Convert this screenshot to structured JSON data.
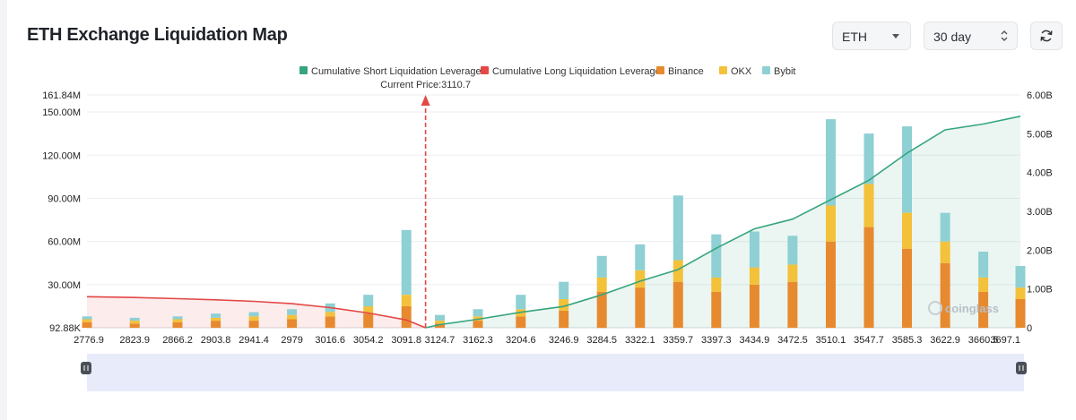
{
  "header": {
    "title": "ETH Exchange Liquidation Map",
    "coin_select": "ETH",
    "period_select": "30 day"
  },
  "icons": {
    "refresh": "refresh-icon",
    "coin_caret": "chevron-down-icon",
    "period_caret": "up-down-chevron-icon"
  },
  "colors": {
    "short_cumulative": "#36a57e",
    "long_cumulative": "#e34845",
    "binance": "#e78a2f",
    "okx": "#f3c13a",
    "bybit": "#8ed0d3"
  },
  "watermark": "coinglass",
  "chart_data": {
    "type": "bar",
    "stacked": true,
    "legend": [
      "Cumulative Short Liquidation Leverage",
      "Cumulative Long Liquidation Leverage",
      "Binance",
      "OKX",
      "Bybit"
    ],
    "legend_position": "top-center",
    "annotation": "Current Price:3110.7",
    "current_price": 3110.7,
    "x_tick_labels": [
      "2776.9",
      "2823.9",
      "2866.2",
      "2903.8",
      "2941.4",
      "2979",
      "3016.6",
      "3054.2",
      "3091.8",
      "3124.7",
      "3162.3",
      "3204.6",
      "3246.9",
      "3284.5",
      "3322.1",
      "3359.7",
      "3397.3",
      "3434.9",
      "3472.5",
      "3510.1",
      "3547.7",
      "3585.3",
      "3622.9",
      "3660.5",
      "3697.1"
    ],
    "xlim": [
      2776.9,
      3697.1
    ],
    "y_left_tick_labels": [
      "92.88K",
      "30.00M",
      "60.00M",
      "90.00M",
      "120.00M",
      "150.00M",
      "161.84M"
    ],
    "y_left_ticks": [
      0.09288,
      30,
      60,
      90,
      120,
      150,
      161.84
    ],
    "y_left_unit": "M",
    "ylim_left": [
      0.09288,
      161.84
    ],
    "y_right_tick_labels": [
      "0",
      "1.00B",
      "2.00B",
      "3.00B",
      "4.00B",
      "5.00B",
      "6.00B"
    ],
    "y_right_ticks": [
      0,
      1,
      2,
      3,
      4,
      5,
      6
    ],
    "y_right_unit": "B",
    "ylim_right": [
      0,
      6
    ],
    "grid": "horizontal",
    "series": [
      {
        "name": "Cumulative Short Liquidation Leverage",
        "kind": "line",
        "axis": "right",
        "x": [
          3110.7,
          3124.7,
          3162.3,
          3204.6,
          3246.9,
          3284.5,
          3322.1,
          3359.7,
          3397.3,
          3434.9,
          3472.5,
          3510.1,
          3547.7,
          3585.3,
          3622.9,
          3660.5,
          3697.1
        ],
        "values": [
          0,
          0.08,
          0.22,
          0.4,
          0.55,
          0.85,
          1.2,
          1.5,
          2.05,
          2.55,
          2.8,
          3.3,
          3.8,
          4.5,
          5.1,
          5.25,
          5.45
        ]
      },
      {
        "name": "Cumulative Long Liquidation Leverage",
        "kind": "line",
        "axis": "right",
        "x": [
          2776.9,
          2823.9,
          2866.2,
          2903.8,
          2941.4,
          2979,
          3016.6,
          3054.2,
          3091.8,
          3110.7
        ],
        "values": [
          0.8,
          0.78,
          0.75,
          0.72,
          0.68,
          0.62,
          0.52,
          0.38,
          0.2,
          0
        ]
      },
      {
        "name": "Binance",
        "kind": "bar",
        "axis": "left",
        "x": [
          2776.9,
          2823.9,
          2866.2,
          2903.8,
          2941.4,
          2979,
          3016.6,
          3054.2,
          3091.8,
          3124.7,
          3162.3,
          3204.6,
          3246.9,
          3284.5,
          3322.1,
          3359.7,
          3397.3,
          3434.9,
          3472.5,
          3510.1,
          3547.7,
          3585.3,
          3622.9,
          3660.5,
          3697.1
        ],
        "values": [
          4,
          3,
          4,
          5,
          5,
          6,
          8,
          10,
          15,
          3,
          5,
          8,
          12,
          25,
          28,
          32,
          25,
          30,
          32,
          60,
          70,
          55,
          45,
          25,
          20
        ]
      },
      {
        "name": "OKX",
        "kind": "bar",
        "axis": "left",
        "x": [
          2776.9,
          2823.9,
          2866.2,
          2903.8,
          2941.4,
          2979,
          3016.6,
          3054.2,
          3091.8,
          3124.7,
          3162.3,
          3204.6,
          3246.9,
          3284.5,
          3322.1,
          3359.7,
          3397.3,
          3434.9,
          3472.5,
          3510.1,
          3547.7,
          3585.3,
          3622.9,
          3660.5,
          3697.1
        ],
        "values": [
          2,
          2,
          2,
          2,
          3,
          3,
          3,
          5,
          8,
          2,
          3,
          5,
          8,
          10,
          12,
          15,
          10,
          12,
          12,
          25,
          30,
          25,
          15,
          10,
          8
        ]
      },
      {
        "name": "Bybit",
        "kind": "bar",
        "axis": "left",
        "x": [
          2776.9,
          2823.9,
          2866.2,
          2903.8,
          2941.4,
          2979,
          3016.6,
          3054.2,
          3091.8,
          3124.7,
          3162.3,
          3204.6,
          3246.9,
          3284.5,
          3322.1,
          3359.7,
          3397.3,
          3434.9,
          3472.5,
          3510.1,
          3547.7,
          3585.3,
          3622.9,
          3660.5,
          3697.1
        ],
        "values": [
          2,
          2,
          2,
          3,
          3,
          4,
          6,
          8,
          45,
          4,
          5,
          10,
          12,
          15,
          18,
          45,
          30,
          25,
          20,
          60,
          35,
          60,
          20,
          18,
          15
        ]
      }
    ]
  }
}
